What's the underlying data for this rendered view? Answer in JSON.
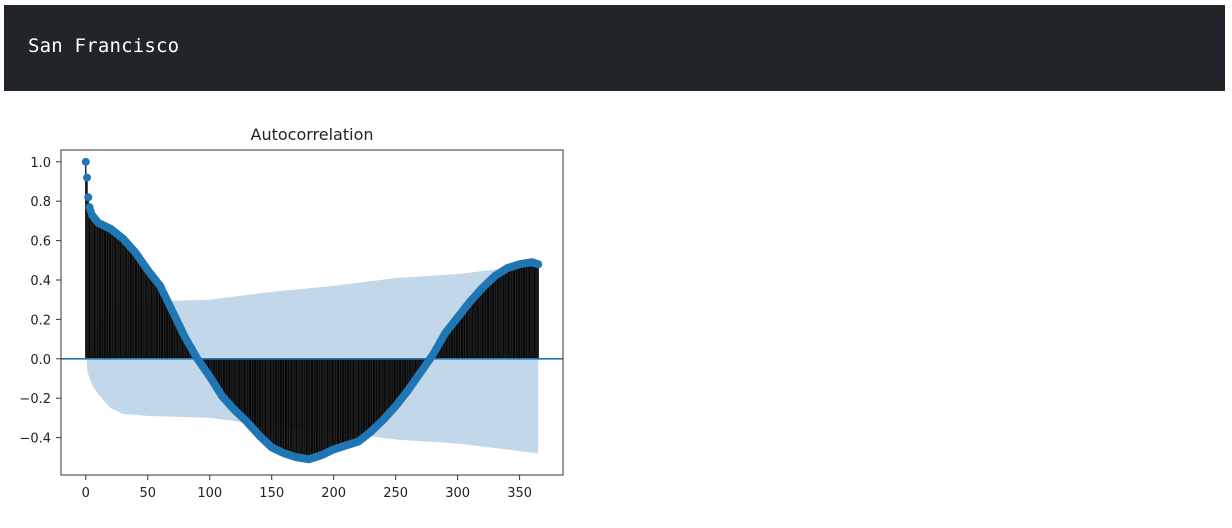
{
  "header": {
    "text": "San Francisco"
  },
  "colors": {
    "header_background": "#212429",
    "header_text": "#ffffff",
    "marker": "#1f77b4",
    "confidence_band": "#c2d8ea",
    "stem": "#0b0b0b"
  },
  "chart_data": {
    "type": "scatter",
    "title": "Autocorrelation",
    "xlabel": "",
    "ylabel": "",
    "xlim": [
      -20,
      385
    ],
    "ylim": [
      -0.59,
      1.06
    ],
    "xticks": [
      0,
      50,
      100,
      150,
      200,
      250,
      300,
      350
    ],
    "yticks": [
      1.0,
      0.8,
      0.6,
      0.4,
      0.2,
      0.0,
      -0.2,
      -0.4
    ],
    "ytick_labels": [
      "1.0",
      "0.8",
      "0.6",
      "0.4",
      "0.2",
      "0.0",
      "−0.2",
      "−0.4"
    ],
    "lags": {
      "start": 0,
      "end": 365
    },
    "series": [
      {
        "values_at_lags": [
          [
            0,
            1.0
          ],
          [
            1,
            0.92
          ],
          [
            2,
            0.82
          ],
          [
            3,
            0.77
          ],
          [
            5,
            0.73
          ],
          [
            10,
            0.69
          ],
          [
            20,
            0.66
          ],
          [
            30,
            0.61
          ],
          [
            40,
            0.54
          ],
          [
            50,
            0.45
          ],
          [
            60,
            0.37
          ],
          [
            70,
            0.24
          ],
          [
            80,
            0.11
          ],
          [
            90,
            0.0
          ],
          [
            100,
            -0.09
          ],
          [
            110,
            -0.19
          ],
          [
            120,
            -0.26
          ],
          [
            130,
            -0.32
          ],
          [
            140,
            -0.39
          ],
          [
            150,
            -0.45
          ],
          [
            160,
            -0.48
          ],
          [
            170,
            -0.5
          ],
          [
            180,
            -0.51
          ],
          [
            190,
            -0.49
          ],
          [
            200,
            -0.46
          ],
          [
            210,
            -0.44
          ],
          [
            220,
            -0.42
          ],
          [
            230,
            -0.37
          ],
          [
            240,
            -0.31
          ],
          [
            250,
            -0.24
          ],
          [
            260,
            -0.16
          ],
          [
            270,
            -0.07
          ],
          [
            280,
            0.02
          ],
          [
            290,
            0.13
          ],
          [
            300,
            0.21
          ],
          [
            310,
            0.29
          ],
          [
            320,
            0.36
          ],
          [
            330,
            0.42
          ],
          [
            340,
            0.46
          ],
          [
            350,
            0.48
          ],
          [
            360,
            0.49
          ],
          [
            365,
            0.48
          ]
        ]
      }
    ],
    "confidence_interval": {
      "upper_at_lags": [
        [
          1,
          0.05
        ],
        [
          2,
          0.08
        ],
        [
          3,
          0.1
        ],
        [
          5,
          0.13
        ],
        [
          10,
          0.18
        ],
        [
          20,
          0.25
        ],
        [
          30,
          0.28
        ],
        [
          50,
          0.29
        ],
        [
          100,
          0.3
        ],
        [
          150,
          0.34
        ],
        [
          200,
          0.37
        ],
        [
          250,
          0.41
        ],
        [
          300,
          0.43
        ],
        [
          365,
          0.48
        ]
      ]
    },
    "zero_line": true,
    "grid": false,
    "legend": "none"
  }
}
